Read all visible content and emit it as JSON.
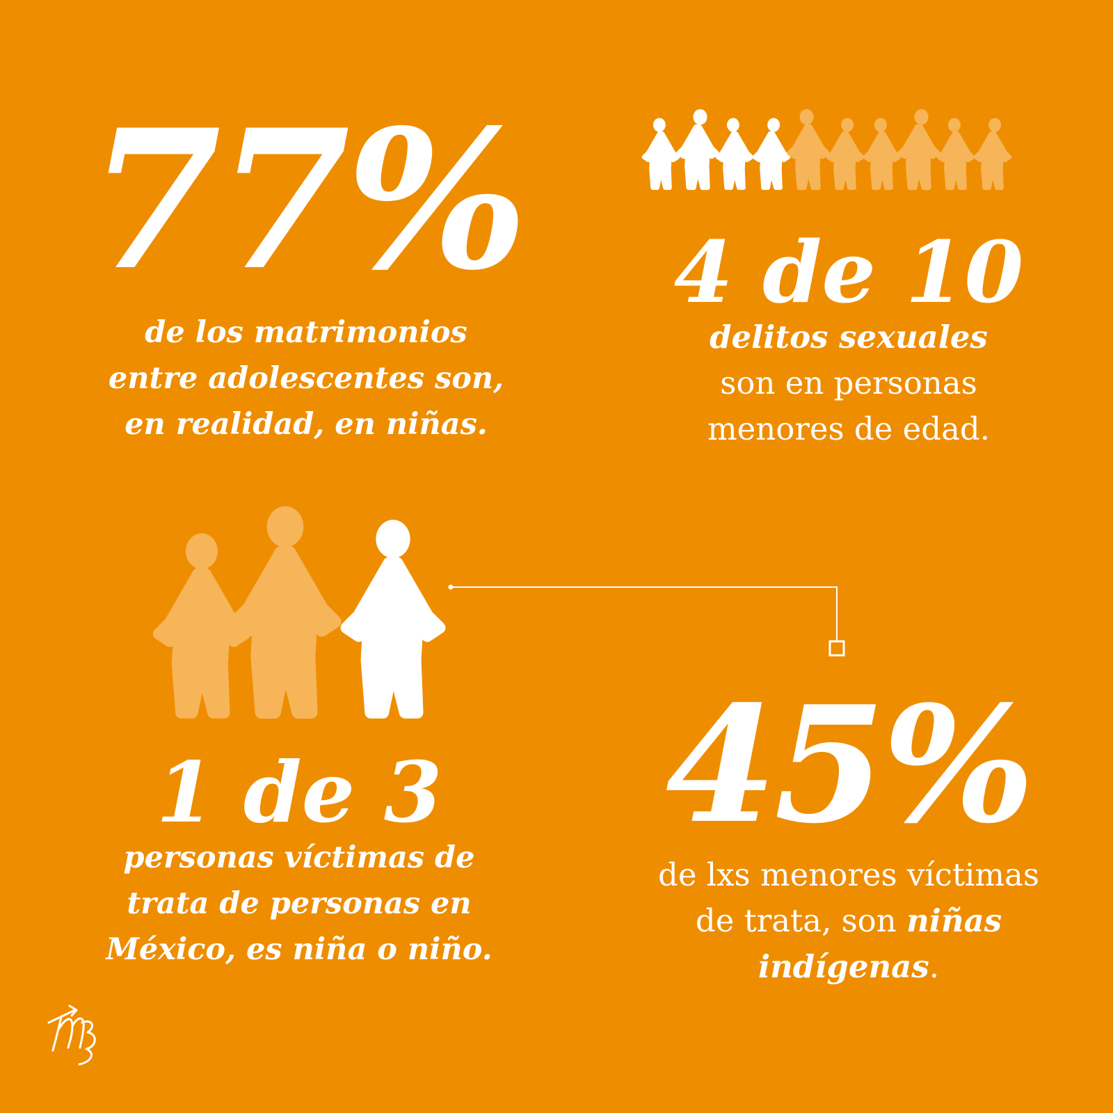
{
  "stats": {
    "s77": {
      "value": "77%",
      "lines": [
        "de los matrimonios",
        "entre adolescentes son,",
        "en realidad, en niñas."
      ]
    },
    "s410": {
      "value": "4 de 10",
      "line1": "delitos sexuales",
      "line2": "son en personas",
      "line3": "menores de edad."
    },
    "s13": {
      "value": "1 de 3",
      "lines": [
        "personas víctimas de",
        "trata de personas en",
        "México, es niña o niño."
      ]
    },
    "s45": {
      "value": "45%",
      "line1": "de lxs menores víctimas",
      "line2_pre": "de trata, son ",
      "line2_em": "niñas",
      "line3_em": "indígenas",
      "line3_post": "."
    }
  },
  "icons": {
    "row_figures_total": 10,
    "row_figures_highlighted": 4,
    "group_figures_total": 3,
    "group_figures_highlighted": 1
  },
  "colors": {
    "background": "#ef8d00",
    "highlight": "#ffffff",
    "faded": "#f7b55a"
  }
}
